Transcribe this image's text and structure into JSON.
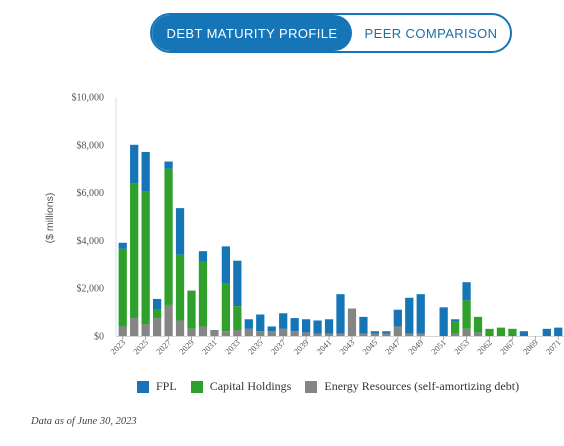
{
  "tabs": {
    "active_label": "DEBT MATURITY PROFILE",
    "inactive_label": "PEER COMPARISON"
  },
  "colors": {
    "fpl": "#1575b6",
    "capital": "#2ea02b",
    "energy": "#858585",
    "tab_accent": "#1575b6"
  },
  "footnote": "Data as of June 30, 2023",
  "chart_data": {
    "type": "bar",
    "stacked": true,
    "ylabel": "($ millions)",
    "ylim": [
      0,
      10000
    ],
    "y_ticks": [
      "$0",
      "$2,000",
      "$4,000",
      "$6,000",
      "$8,000",
      "$10,000"
    ],
    "y_tick_values": [
      0,
      2000,
      4000,
      6000,
      8000,
      10000
    ],
    "grid": false,
    "legend_position": "bottom",
    "categories": [
      "2023",
      "2024",
      "2025",
      "2026",
      "2027",
      "2028",
      "2029",
      "2030",
      "2031",
      "2032",
      "2033",
      "2034",
      "2035",
      "2036",
      "2037",
      "2038",
      "2039",
      "2040",
      "2041",
      "2042",
      "2043",
      "2044",
      "2045",
      "2046",
      "2047",
      "2048",
      "2049",
      "2050",
      "2051",
      "2052",
      "2053",
      "2054",
      "2062",
      "2065",
      "2067",
      "2068",
      "2069",
      "2070",
      "2071"
    ],
    "x_tick_labels": [
      "2023",
      "2025",
      "2027",
      "2029",
      "2031",
      "2033",
      "2035",
      "2037",
      "2039",
      "2041",
      "2043",
      "2045",
      "2047",
      "2049",
      "2051",
      "2053",
      "2062",
      "2067",
      "2069",
      "2071"
    ],
    "x_tick_indices": [
      0,
      2,
      4,
      6,
      8,
      10,
      12,
      14,
      16,
      18,
      20,
      22,
      24,
      26,
      28,
      30,
      32,
      34,
      36,
      38
    ],
    "series": [
      {
        "name": "Energy Resources (self-amortizing debt)",
        "color_key": "energy",
        "values": [
          400,
          750,
          500,
          750,
          1300,
          650,
          300,
          400,
          250,
          200,
          250,
          300,
          200,
          200,
          300,
          200,
          150,
          100,
          100,
          100,
          1150,
          100,
          100,
          100,
          400,
          100,
          100,
          0,
          0,
          100,
          300,
          150,
          0,
          0,
          0,
          0,
          0,
          0,
          0
        ]
      },
      {
        "name": "Capital Holdings",
        "color_key": "capital",
        "values": [
          3250,
          5650,
          5550,
          350,
          5700,
          2750,
          1600,
          2700,
          0,
          2000,
          1000,
          0,
          0,
          0,
          0,
          0,
          0,
          0,
          0,
          0,
          0,
          0,
          0,
          0,
          0,
          0,
          0,
          0,
          0,
          500,
          1200,
          650,
          300,
          350,
          300,
          0,
          0,
          0,
          0
        ]
      },
      {
        "name": "FPL",
        "color_key": "fpl",
        "values": [
          250,
          1600,
          1650,
          450,
          300,
          1950,
          0,
          450,
          0,
          1550,
          1900,
          400,
          700,
          200,
          650,
          550,
          550,
          550,
          600,
          1650,
          0,
          700,
          100,
          100,
          700,
          1500,
          1650,
          0,
          1200,
          100,
          750,
          0,
          0,
          0,
          0,
          200,
          0,
          300,
          350
        ]
      }
    ]
  }
}
